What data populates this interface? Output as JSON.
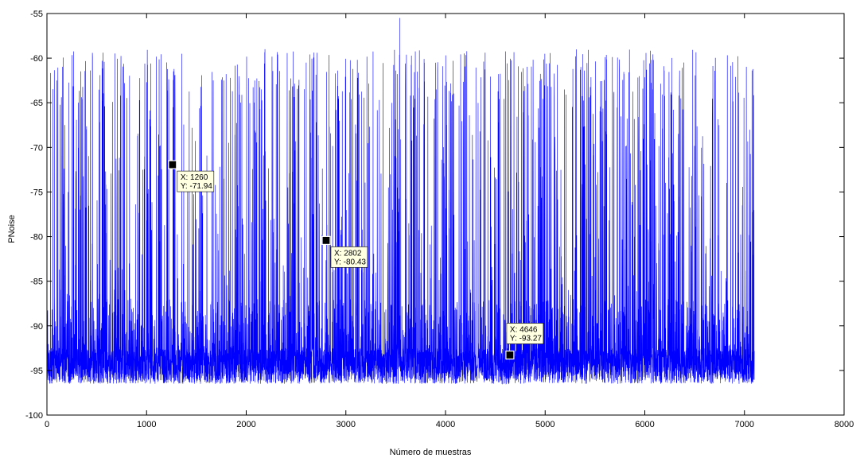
{
  "chart_data": {
    "type": "line",
    "title": "",
    "xlabel": "Número de muestras",
    "ylabel": "PNoise",
    "xlim": [
      0,
      8000
    ],
    "ylim": [
      -100,
      -55
    ],
    "x_ticks": [
      0,
      1000,
      2000,
      3000,
      4000,
      5000,
      6000,
      7000,
      8000
    ],
    "y_ticks": [
      -100,
      -95,
      -90,
      -85,
      -80,
      -75,
      -70,
      -65,
      -60,
      -55
    ],
    "grid": false,
    "legend": "none",
    "series": [
      {
        "color": "#0000ff",
        "n_points": 7100,
        "baseline_range": [
          -96.5,
          -92.5
        ],
        "peak_max": -55.5,
        "peak_max_x": 3540,
        "typical_peak_range": [
          -65,
          -59
        ]
      }
    ],
    "datatips": [
      {
        "x_text": "X: 1260",
        "y_text": "Y: -71.94",
        "x": 1260,
        "y": -71.94
      },
      {
        "x_text": "X: 2802",
        "y_text": "Y: -80.43",
        "x": 2802,
        "y": -80.43
      },
      {
        "x_text": "X: 4646",
        "y_text": "Y: -93.27",
        "x": 4646,
        "y": -93.27
      }
    ],
    "colors": {
      "line": "#0000ff",
      "datatip_bg": "#ffffe1",
      "axis": "#000000"
    }
  }
}
